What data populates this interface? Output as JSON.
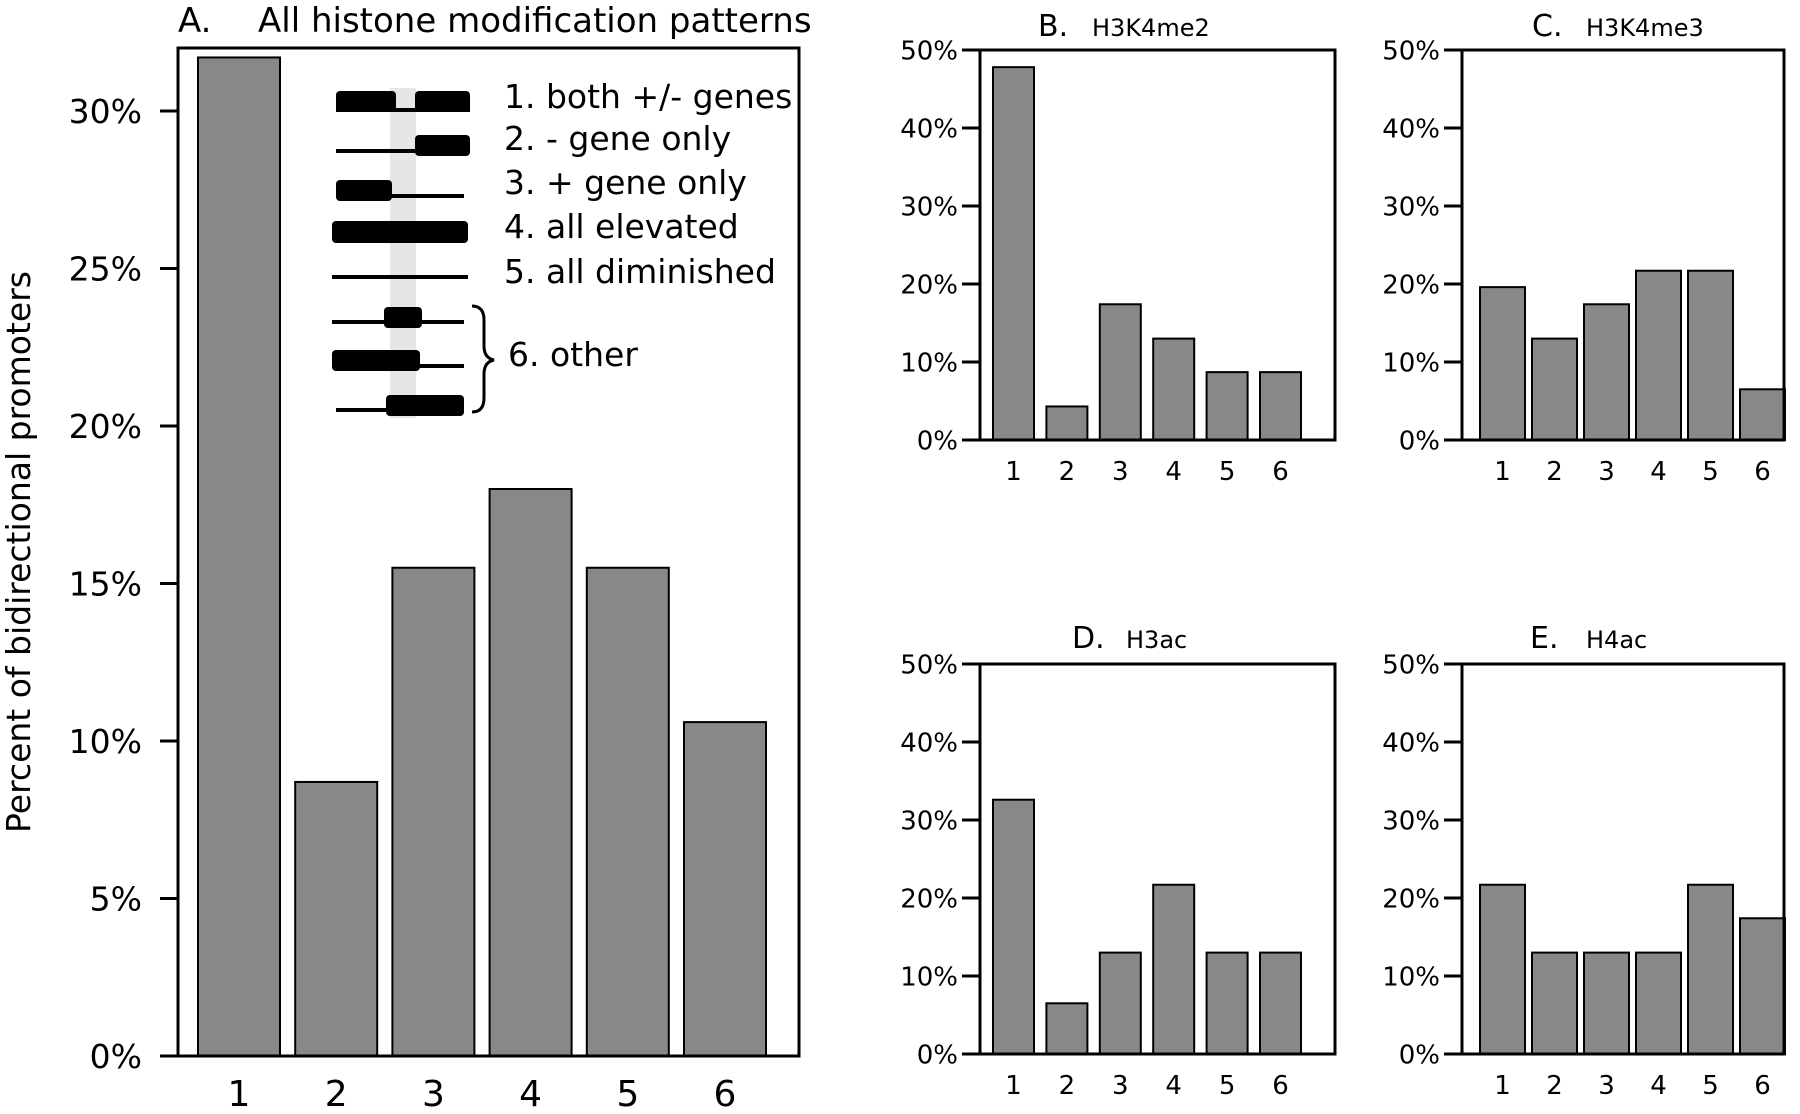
{
  "figure": {
    "ylabel": "Percent of bidirectional promoters",
    "legend": {
      "items": [
        {
          "label": "1. both +/- genes"
        },
        {
          "label": "2. - gene only"
        },
        {
          "label": "3. + gene only"
        },
        {
          "label": "4. all elevated"
        },
        {
          "label": "5. all diminished"
        }
      ],
      "other_label": "6. other"
    }
  },
  "chart_data": [
    {
      "type": "bar",
      "letter": "A.",
      "title": "All histone modification patterns",
      "categories": [
        "1",
        "2",
        "3",
        "4",
        "5",
        "6"
      ],
      "values": [
        31.7,
        8.7,
        15.5,
        18.0,
        15.5,
        10.6
      ],
      "ylim": [
        0,
        32
      ],
      "yticks": [
        0,
        5,
        10,
        15,
        20,
        25,
        30
      ],
      "ytick_labels": [
        "0%",
        "5%",
        "10%",
        "15%",
        "20%",
        "25%",
        "30%"
      ],
      "ylabel": "Percent of bidirectional promoters",
      "xlabel": "",
      "bar_color": "#888888"
    },
    {
      "type": "bar",
      "letter": "B.",
      "title": "H3K4me2",
      "categories": [
        "1",
        "2",
        "3",
        "4",
        "5",
        "6"
      ],
      "values": [
        47.8,
        4.3,
        17.4,
        13.0,
        8.7,
        8.7
      ],
      "ylim": [
        0,
        50
      ],
      "yticks": [
        0,
        10,
        20,
        30,
        40,
        50
      ],
      "ytick_labels": [
        "0%",
        "10%",
        "20%",
        "30%",
        "40%",
        "50%"
      ],
      "xlabel": "",
      "ylabel": "",
      "bar_color": "#888888"
    },
    {
      "type": "bar",
      "letter": "C.",
      "title": "H3K4me3",
      "categories": [
        "1",
        "2",
        "3",
        "4",
        "5",
        "6"
      ],
      "values": [
        19.6,
        13.0,
        17.4,
        21.7,
        21.7,
        6.5
      ],
      "ylim": [
        0,
        50
      ],
      "yticks": [
        0,
        10,
        20,
        30,
        40,
        50
      ],
      "ytick_labels": [
        "0%",
        "10%",
        "20%",
        "30%",
        "40%",
        "50%"
      ],
      "xlabel": "",
      "ylabel": "",
      "bar_color": "#888888"
    },
    {
      "type": "bar",
      "letter": "D.",
      "title": "H3ac",
      "categories": [
        "1",
        "2",
        "3",
        "4",
        "5",
        "6"
      ],
      "values": [
        32.6,
        6.5,
        13.0,
        21.7,
        13.0,
        13.0
      ],
      "ylim": [
        0,
        50
      ],
      "yticks": [
        0,
        10,
        20,
        30,
        40,
        50
      ],
      "ytick_labels": [
        "0%",
        "10%",
        "20%",
        "30%",
        "40%",
        "50%"
      ],
      "xlabel": "",
      "ylabel": "",
      "bar_color": "#888888"
    },
    {
      "type": "bar",
      "letter": "E.",
      "title": "H4ac",
      "categories": [
        "1",
        "2",
        "3",
        "4",
        "5",
        "6"
      ],
      "values": [
        21.7,
        13.0,
        13.0,
        13.0,
        21.7,
        17.4
      ],
      "ylim": [
        0,
        50
      ],
      "yticks": [
        0,
        10,
        20,
        30,
        40,
        50
      ],
      "ytick_labels": [
        "0%",
        "10%",
        "20%",
        "30%",
        "40%",
        "50%"
      ],
      "xlabel": "",
      "ylabel": "",
      "bar_color": "#888888"
    }
  ]
}
